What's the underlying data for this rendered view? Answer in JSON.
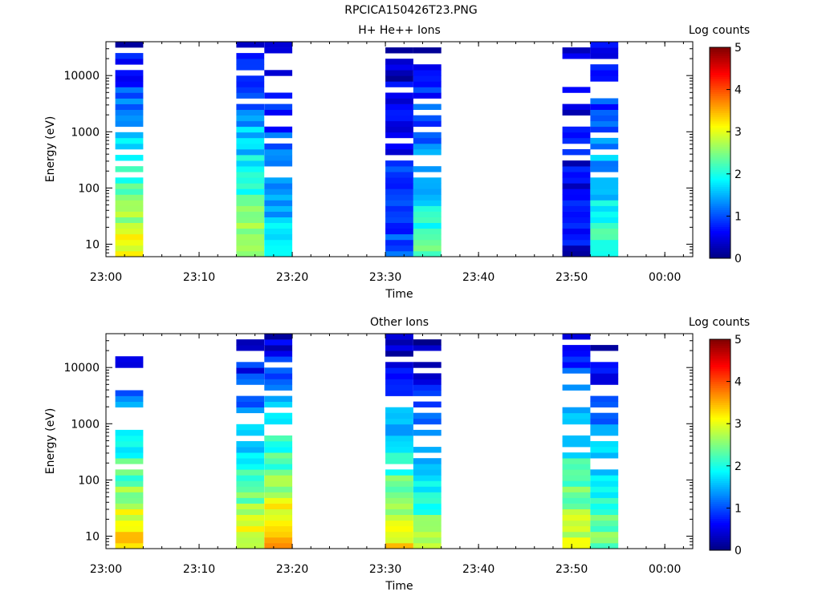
{
  "page": {
    "title": "RPCICA150426T23.PNG"
  },
  "chart_data": [
    {
      "type": "heatmap",
      "title": "H+ He++ Ions",
      "xlabel": "Time",
      "ylabel": "Energy (eV)",
      "x_ticks": [
        "23:00",
        "23:10",
        "23:20",
        "23:30",
        "23:40",
        "23:50",
        "00:00"
      ],
      "xlim": [
        "23:00",
        "00:03"
      ],
      "y_ticks": [
        10,
        100,
        1000,
        10000
      ],
      "ylim": [
        6,
        40000
      ],
      "y_scale": "log",
      "colorbar": {
        "label": "Log counts",
        "ticks": [
          0,
          1,
          2,
          3,
          4,
          5
        ],
        "range": [
          0,
          5
        ],
        "colormap": "jet"
      },
      "columns": [
        {
          "x_start": "23:01",
          "x_end": "23:04",
          "mean_low_energy_log_counts": 3.1,
          "mean_high_energy_log_counts": 0.4
        },
        {
          "x_start": "23:14",
          "x_end": "23:17",
          "mean_low_energy_log_counts": 2.9,
          "mean_high_energy_log_counts": 0.5
        },
        {
          "x_start": "23:17",
          "x_end": "23:20",
          "mean_low_energy_log_counts": 1.8,
          "mean_high_energy_log_counts": 0.4
        },
        {
          "x_start": "23:30",
          "x_end": "23:33",
          "mean_low_energy_log_counts": 1.1,
          "mean_high_energy_log_counts": 0.3
        },
        {
          "x_start": "23:33",
          "x_end": "23:36",
          "mean_low_energy_log_counts": 2.3,
          "mean_high_energy_log_counts": 0.3
        },
        {
          "x_start": "23:49",
          "x_end": "23:52",
          "mean_low_energy_log_counts": 0.5,
          "mean_high_energy_log_counts": 0.6
        },
        {
          "x_start": "23:52",
          "x_end": "23:55",
          "mean_low_energy_log_counts": 2.3,
          "mean_high_energy_log_counts": 0.4
        }
      ]
    },
    {
      "type": "heatmap",
      "title": "Other Ions",
      "xlabel": "Time",
      "ylabel": "Energy (eV)",
      "x_ticks": [
        "23:00",
        "23:10",
        "23:20",
        "23:30",
        "23:40",
        "23:50",
        "00:00"
      ],
      "xlim": [
        "23:00",
        "00:03"
      ],
      "y_ticks": [
        10,
        100,
        1000,
        10000
      ],
      "ylim": [
        6,
        40000
      ],
      "y_scale": "log",
      "colorbar": {
        "label": "Log counts",
        "ticks": [
          0,
          1,
          2,
          3,
          4,
          5
        ],
        "range": [
          0,
          5
        ],
        "colormap": "jet"
      },
      "columns": [
        {
          "x_start": "23:01",
          "x_end": "23:04",
          "mean_low_energy_log_counts": 3.5,
          "mean_high_energy_log_counts": 0.1
        },
        {
          "x_start": "23:14",
          "x_end": "23:17",
          "mean_low_energy_log_counts": 3.1,
          "mean_high_energy_log_counts": 0.3
        },
        {
          "x_start": "23:17",
          "x_end": "23:20",
          "mean_low_energy_log_counts": 3.6,
          "mean_high_energy_log_counts": 0.3
        },
        {
          "x_start": "23:30",
          "x_end": "23:33",
          "mean_low_energy_log_counts": 3.3,
          "mean_high_energy_log_counts": 0.2
        },
        {
          "x_start": "23:33",
          "x_end": "23:36",
          "mean_low_energy_log_counts": 2.7,
          "mean_high_energy_log_counts": 0.2
        },
        {
          "x_start": "23:49",
          "x_end": "23:52",
          "mean_low_energy_log_counts": 3.1,
          "mean_high_energy_log_counts": 0.5
        },
        {
          "x_start": "23:52",
          "x_end": "23:55",
          "mean_low_energy_log_counts": 2.5,
          "mean_high_energy_log_counts": 0.3
        }
      ]
    }
  ]
}
